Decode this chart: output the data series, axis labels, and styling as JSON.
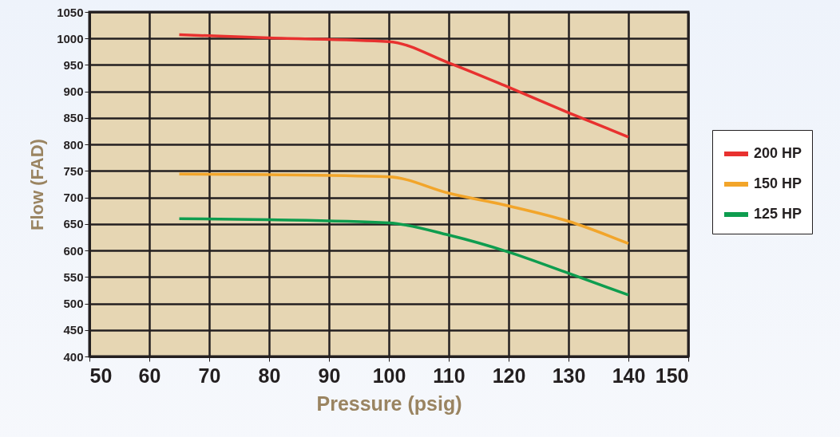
{
  "chart_data": {
    "type": "line",
    "xlabel": "Pressure (psig)",
    "ylabel": "Flow (FAD)",
    "x": [
      65,
      80,
      100,
      110,
      120,
      130,
      140
    ],
    "series": [
      {
        "name": "200 HP",
        "color": "#e8312f",
        "values": [
          1007,
          1001,
          994,
          954,
          908,
          860,
          814
        ]
      },
      {
        "name": "150 HP",
        "color": "#f2a52a",
        "values": [
          744,
          743,
          739,
          708,
          684,
          655,
          613
        ]
      },
      {
        "name": "125 HP",
        "color": "#0e9d4f",
        "values": [
          660,
          658,
          652,
          629,
          597,
          557,
          516
        ]
      }
    ],
    "xlim": [
      50,
      150
    ],
    "xticks": [
      50,
      60,
      70,
      80,
      90,
      100,
      110,
      120,
      130,
      140,
      150
    ],
    "ylim": [
      400,
      1050
    ],
    "yticks": [
      400,
      450,
      500,
      550,
      600,
      650,
      700,
      750,
      800,
      850,
      900,
      950,
      1000,
      1050
    ],
    "grid": true,
    "legend": "right",
    "marker": "none",
    "line_style": "solid"
  }
}
